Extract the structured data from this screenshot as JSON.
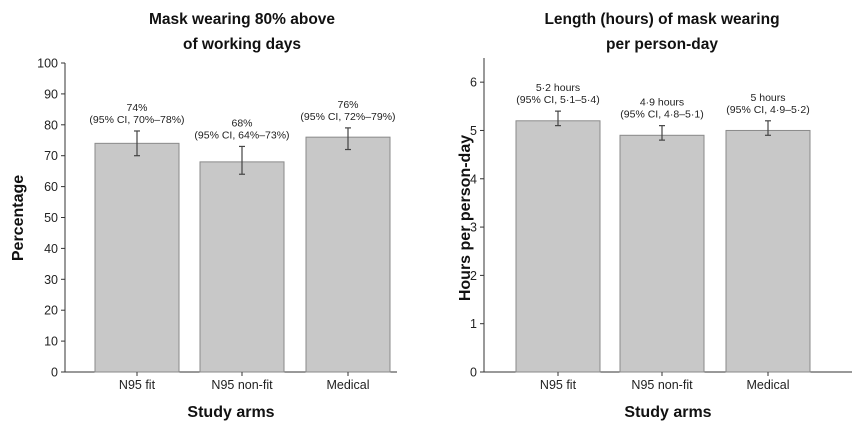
{
  "chart_data": [
    {
      "type": "bar",
      "title": [
        "Mask wearing 80% above",
        "of working days"
      ],
      "xlabel": "Study arms",
      "ylabel": "Percentage",
      "categories": [
        "N95 fit",
        "N95 non-fit",
        "Medical"
      ],
      "values": [
        74,
        68,
        76
      ],
      "ci_lower": [
        70,
        64,
        72
      ],
      "ci_upper": [
        78,
        73,
        79
      ],
      "value_labels": [
        [
          "74%",
          "(95% CI, 70%–78%)"
        ],
        [
          "68%",
          "(95% CI, 64%–73%)"
        ],
        [
          "76%",
          "(95% CI, 72%–79%)"
        ]
      ],
      "ylim": [
        0,
        100
      ],
      "yticks": [
        "0",
        "10",
        "20",
        "30",
        "40",
        "50",
        "60",
        "70",
        "80",
        "90",
        "100"
      ],
      "bar_color": "#c8c8c8",
      "grid": false
    },
    {
      "type": "bar",
      "title": [
        "Length (hours) of mask wearing",
        "per person-day"
      ],
      "xlabel": "Study arms",
      "ylabel": "Hours per person-day",
      "categories": [
        "N95 fit",
        "N95 non-fit",
        "Medical"
      ],
      "values": [
        5.2,
        4.9,
        5.0
      ],
      "ci_lower": [
        5.1,
        4.8,
        4.9
      ],
      "ci_upper": [
        5.4,
        5.1,
        5.2
      ],
      "value_labels": [
        [
          "5·2 hours",
          "(95% CI, 5·1–5·4)"
        ],
        [
          "4·9 hours",
          "(95% CI, 4·8–5·1)"
        ],
        [
          "5 hours",
          "(95% CI, 4·9–5·2)"
        ]
      ],
      "ylim": [
        0,
        6.5
      ],
      "yticks": [
        "0",
        "1",
        "2",
        "3",
        "4",
        "5",
        "6"
      ],
      "bar_color": "#c8c8c8",
      "grid": false
    }
  ]
}
